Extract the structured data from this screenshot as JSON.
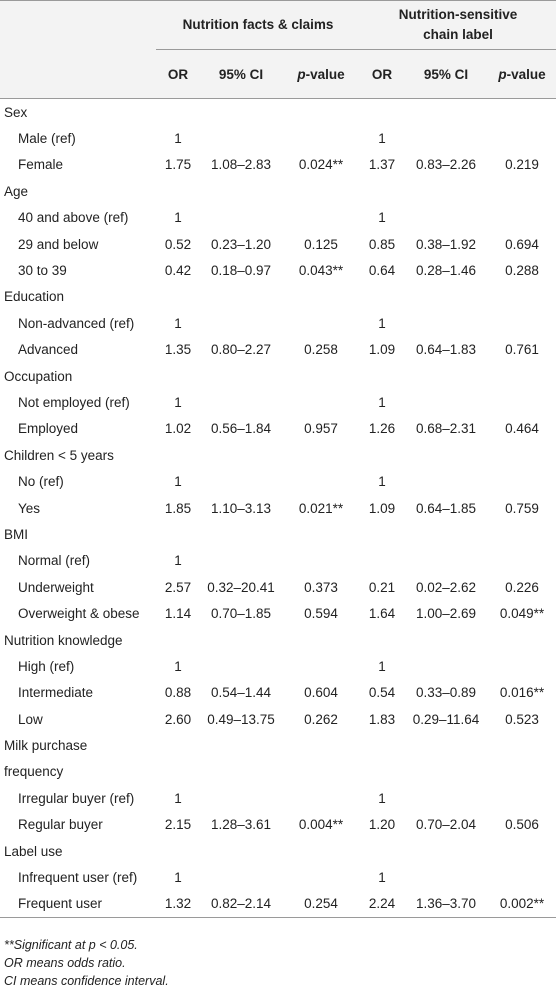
{
  "headers": {
    "group1": "Nutrition facts & claims",
    "group2_line1": "Nutrition-sensitive",
    "group2_line2": "chain label",
    "or": "OR",
    "ci": "95% CI",
    "p_prefix": "p",
    "p_suffix": "-value"
  },
  "rows": [
    {
      "type": "cat",
      "label": "Sex"
    },
    {
      "type": "sub",
      "label": "Male (ref)",
      "or1": "1",
      "ci1": "",
      "p1": "",
      "or2": "1",
      "ci2": "",
      "p2": ""
    },
    {
      "type": "sub",
      "label": "Female",
      "or1": "1.75",
      "ci1": "1.08–2.83",
      "p1": "0.024**",
      "or2": "1.37",
      "ci2": "0.83–2.26",
      "p2": "0.219"
    },
    {
      "type": "cat",
      "label": "Age"
    },
    {
      "type": "sub",
      "label": "40 and above (ref)",
      "or1": "1",
      "ci1": "",
      "p1": "",
      "or2": "1",
      "ci2": "",
      "p2": ""
    },
    {
      "type": "sub",
      "label": "29 and below",
      "or1": "0.52",
      "ci1": "0.23–1.20",
      "p1": "0.125",
      "or2": "0.85",
      "ci2": "0.38–1.92",
      "p2": "0.694"
    },
    {
      "type": "sub",
      "label": "30 to 39",
      "or1": "0.42",
      "ci1": "0.18–0.97",
      "p1": "0.043**",
      "or2": "0.64",
      "ci2": "0.28–1.46",
      "p2": "0.288"
    },
    {
      "type": "cat",
      "label": "Education"
    },
    {
      "type": "sub",
      "label": "Non-advanced (ref)",
      "or1": "1",
      "ci1": "",
      "p1": "",
      "or2": "1",
      "ci2": "",
      "p2": ""
    },
    {
      "type": "sub",
      "label": "Advanced",
      "or1": "1.35",
      "ci1": "0.80–2.27",
      "p1": "0.258",
      "or2": "1.09",
      "ci2": "0.64–1.83",
      "p2": "0.761"
    },
    {
      "type": "cat",
      "label": "Occupation"
    },
    {
      "type": "sub",
      "label": "Not employed (ref)",
      "or1": "1",
      "ci1": "",
      "p1": "",
      "or2": "1",
      "ci2": "",
      "p2": ""
    },
    {
      "type": "sub",
      "label": "Employed",
      "or1": "1.02",
      "ci1": "0.56–1.84",
      "p1": "0.957",
      "or2": "1.26",
      "ci2": "0.68–2.31",
      "p2": "0.464"
    },
    {
      "type": "cat",
      "label": "Children < 5 years"
    },
    {
      "type": "sub",
      "label": "No (ref)",
      "or1": "1",
      "ci1": "",
      "p1": "",
      "or2": "1",
      "ci2": "",
      "p2": ""
    },
    {
      "type": "sub",
      "label": "Yes",
      "or1": "1.85",
      "ci1": "1.10–3.13",
      "p1": "0.021**",
      "or2": "1.09",
      "ci2": "0.64–1.85",
      "p2": "0.759"
    },
    {
      "type": "cat",
      "label": "BMI"
    },
    {
      "type": "sub",
      "label": "Normal (ref)",
      "or1": "1",
      "ci1": "",
      "p1": "",
      "or2": "",
      "ci2": "",
      "p2": ""
    },
    {
      "type": "sub",
      "label": "Underweight",
      "or1": "2.57",
      "ci1": "0.32–20.41",
      "p1": "0.373",
      "or2": "0.21",
      "ci2": "0.02–2.62",
      "p2": "0.226"
    },
    {
      "type": "sub",
      "label": "Overweight & obese",
      "or1": "1.14",
      "ci1": "0.70–1.85",
      "p1": "0.594",
      "or2": "1.64",
      "ci2": "1.00–2.69",
      "p2": "0.049**"
    },
    {
      "type": "cat",
      "label": "Nutrition knowledge"
    },
    {
      "type": "sub",
      "label": "High (ref)",
      "or1": "1",
      "ci1": "",
      "p1": "",
      "or2": "1",
      "ci2": "",
      "p2": ""
    },
    {
      "type": "sub",
      "label": "Intermediate",
      "or1": "0.88",
      "ci1": "0.54–1.44",
      "p1": "0.604",
      "or2": "0.54",
      "ci2": "0.33–0.89",
      "p2": "0.016**"
    },
    {
      "type": "sub",
      "label": "Low",
      "or1": "2.60",
      "ci1": "0.49–13.75",
      "p1": "0.262",
      "or2": "1.83",
      "ci2": "0.29–11.64",
      "p2": "0.523"
    },
    {
      "type": "cat",
      "label": "Milk purchase"
    },
    {
      "type": "cat",
      "label": "frequency"
    },
    {
      "type": "sub",
      "label": "Irregular buyer (ref)",
      "or1": "1",
      "ci1": "",
      "p1": "",
      "or2": "1",
      "ci2": "",
      "p2": ""
    },
    {
      "type": "sub",
      "label": "Regular buyer",
      "or1": "2.15",
      "ci1": "1.28–3.61",
      "p1": "0.004**",
      "or2": "1.20",
      "ci2": "0.70–2.04",
      "p2": "0.506"
    },
    {
      "type": "cat",
      "label": "Label use"
    },
    {
      "type": "sub",
      "label": "Infrequent user (ref)",
      "or1": "1",
      "ci1": "",
      "p1": "",
      "or2": "1",
      "ci2": "",
      "p2": ""
    },
    {
      "type": "sub",
      "label": "Frequent user",
      "or1": "1.32",
      "ci1": "0.82–2.14",
      "p1": "0.254",
      "or2": "2.24",
      "ci2": "1.36–3.70",
      "p2": "0.002**"
    }
  ],
  "notes": {
    "line1_prefix": "**Significant at ",
    "line1_var": "p",
    "line1_suffix": " < 0.05.",
    "line2": "OR means odds ratio.",
    "line3": "CI means confidence interval."
  }
}
